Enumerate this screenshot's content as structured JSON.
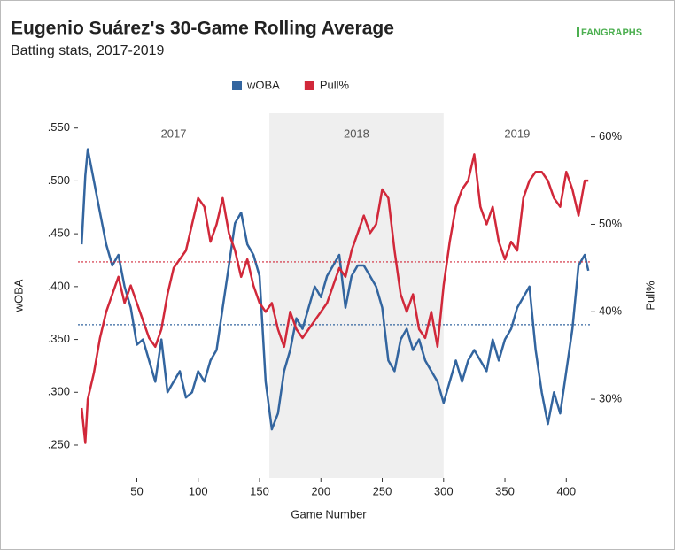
{
  "chart_data": {
    "type": "line",
    "title": "Eugenio Suárez's 30-Game Rolling Average",
    "subtitle": "Batting stats, 2017-2019",
    "logo": "FANGRAPHS",
    "xlabel": "Game Number",
    "ylabel": "wOBA",
    "y2label": "Pull%",
    "xlim": [
      2,
      420
    ],
    "ylim": [
      0.219,
      0.564
    ],
    "y2lim": [
      21,
      62.7
    ],
    "xticks": [
      50,
      100,
      150,
      200,
      250,
      300,
      350,
      400
    ],
    "yticks": [
      {
        "value": 0.25,
        "label": ".250"
      },
      {
        "value": 0.3,
        "label": ".300"
      },
      {
        "value": 0.35,
        "label": ".350"
      },
      {
        "value": 0.4,
        "label": ".400"
      },
      {
        "value": 0.45,
        "label": ".450"
      },
      {
        "value": 0.5,
        "label": ".500"
      },
      {
        "value": 0.55,
        "label": ".550"
      }
    ],
    "y2ticks": [
      {
        "value": 30,
        "label": "30%"
      },
      {
        "value": 40,
        "label": "40%"
      },
      {
        "value": 50,
        "label": "50%"
      },
      {
        "value": 60,
        "label": "60%"
      }
    ],
    "seasons": [
      {
        "label": "2017",
        "start": 2,
        "end": 158,
        "shaded": false
      },
      {
        "label": "2018",
        "start": 158,
        "end": 300,
        "shaded": true
      },
      {
        "label": "2019",
        "start": 300,
        "end": 420,
        "shaded": false
      }
    ],
    "legend": "top",
    "x": [
      5,
      8,
      10,
      15,
      20,
      25,
      30,
      35,
      40,
      45,
      50,
      55,
      60,
      65,
      70,
      75,
      80,
      85,
      90,
      95,
      100,
      105,
      110,
      115,
      120,
      125,
      130,
      135,
      140,
      145,
      150,
      155,
      160,
      165,
      170,
      175,
      180,
      185,
      190,
      195,
      200,
      205,
      210,
      215,
      220,
      225,
      230,
      235,
      240,
      245,
      250,
      255,
      260,
      265,
      270,
      275,
      280,
      285,
      290,
      295,
      300,
      305,
      310,
      315,
      320,
      325,
      330,
      335,
      340,
      345,
      350,
      355,
      360,
      365,
      370,
      375,
      380,
      385,
      390,
      395,
      400,
      405,
      410,
      415,
      418
    ],
    "series": [
      {
        "name": "wOBA",
        "color": "#33659f",
        "axis": "y",
        "average": 0.364,
        "values": [
          0.44,
          0.505,
          0.53,
          0.5,
          0.47,
          0.44,
          0.42,
          0.43,
          0.4,
          0.38,
          0.345,
          0.35,
          0.33,
          0.31,
          0.35,
          0.3,
          0.31,
          0.32,
          0.295,
          0.3,
          0.32,
          0.31,
          0.33,
          0.34,
          0.38,
          0.42,
          0.46,
          0.47,
          0.44,
          0.43,
          0.41,
          0.31,
          0.265,
          0.28,
          0.32,
          0.34,
          0.37,
          0.36,
          0.38,
          0.4,
          0.39,
          0.41,
          0.42,
          0.43,
          0.38,
          0.41,
          0.42,
          0.42,
          0.41,
          0.4,
          0.38,
          0.33,
          0.32,
          0.35,
          0.36,
          0.34,
          0.35,
          0.33,
          0.32,
          0.31,
          0.29,
          0.31,
          0.33,
          0.31,
          0.33,
          0.34,
          0.33,
          0.32,
          0.35,
          0.33,
          0.35,
          0.36,
          0.38,
          0.39,
          0.4,
          0.34,
          0.3,
          0.27,
          0.3,
          0.28,
          0.32,
          0.36,
          0.42,
          0.43,
          0.415
        ]
      },
      {
        "name": "Pull%",
        "color": "#d1283a",
        "axis": "y2",
        "average": 45.7,
        "values": [
          29,
          25,
          30,
          33,
          37,
          40,
          42,
          44,
          41,
          43,
          41,
          39,
          37,
          36,
          38,
          42,
          45,
          46,
          47,
          50,
          53,
          52,
          48,
          50,
          53,
          49,
          47,
          44,
          46,
          43,
          41,
          40,
          41,
          38,
          36,
          40,
          38,
          37,
          38,
          39,
          40,
          41,
          43,
          45,
          44,
          47,
          49,
          51,
          49,
          50,
          54,
          53,
          47,
          42,
          40,
          42,
          38,
          37,
          40,
          36,
          43,
          48,
          52,
          54,
          55,
          58,
          52,
          50,
          52,
          48,
          46,
          48,
          47,
          53,
          55,
          56,
          56,
          55,
          53,
          52,
          56,
          54,
          51,
          55,
          55
        ]
      }
    ]
  }
}
